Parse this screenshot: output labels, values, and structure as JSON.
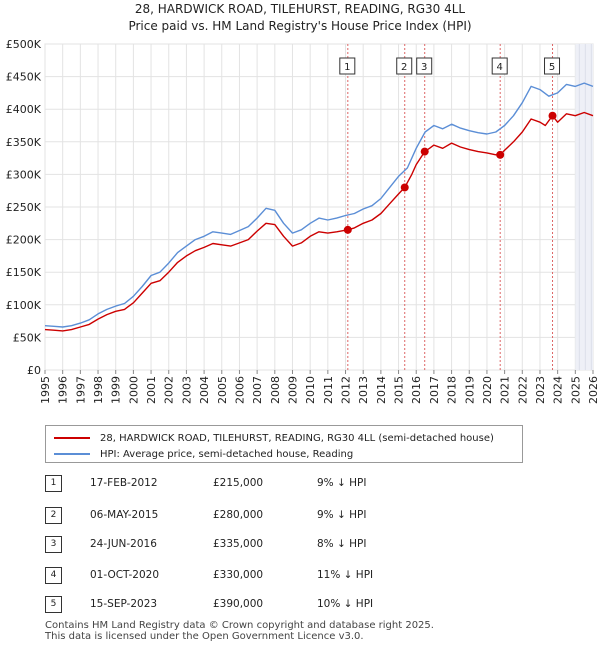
{
  "chart_data": {
    "type": "line",
    "title_line1": "28, HARDWICK ROAD, TILEHURST, READING, RG30 4LL",
    "title_line2": "Price paid vs. HM Land Registry's House Price Index (HPI)",
    "ylim": [
      0,
      500000
    ],
    "y_ticks": [
      {
        "value": 0,
        "label": "£0"
      },
      {
        "value": 50000,
        "label": "£50K"
      },
      {
        "value": 100000,
        "label": "£100K"
      },
      {
        "value": 150000,
        "label": "£150K"
      },
      {
        "value": 200000,
        "label": "£200K"
      },
      {
        "value": 250000,
        "label": "£250K"
      },
      {
        "value": 300000,
        "label": "£300K"
      },
      {
        "value": 350000,
        "label": "£350K"
      },
      {
        "value": 400000,
        "label": "£400K"
      },
      {
        "value": 450000,
        "label": "£450K"
      },
      {
        "value": 500000,
        "label": "£500K"
      }
    ],
    "xlim": [
      1995,
      2026
    ],
    "x_ticks": [
      "1995",
      "1996",
      "1997",
      "1998",
      "1999",
      "2000",
      "2001",
      "2002",
      "2003",
      "2004",
      "2005",
      "2006",
      "2007",
      "2008",
      "2009",
      "2010",
      "2011",
      "2012",
      "2013",
      "2014",
      "2015",
      "2016",
      "2017",
      "2018",
      "2019",
      "2020",
      "2021",
      "2022",
      "2023",
      "2024",
      "2025",
      "2026"
    ],
    "series": [
      {
        "name": "28, HARDWICK ROAD, TILEHURST, READING, RG30 4LL (semi-detached house)",
        "color": "#cc0000",
        "points": [
          [
            1995.0,
            62000
          ],
          [
            1995.5,
            61000
          ],
          [
            1996.0,
            60000
          ],
          [
            1996.5,
            62000
          ],
          [
            1997.0,
            66000
          ],
          [
            1997.5,
            70000
          ],
          [
            1998.0,
            78000
          ],
          [
            1998.5,
            85000
          ],
          [
            1999.0,
            90000
          ],
          [
            1999.5,
            93000
          ],
          [
            2000.0,
            103000
          ],
          [
            2000.5,
            118000
          ],
          [
            2001.0,
            133000
          ],
          [
            2001.5,
            137000
          ],
          [
            2002.0,
            150000
          ],
          [
            2002.5,
            165000
          ],
          [
            2003.0,
            175000
          ],
          [
            2003.5,
            183000
          ],
          [
            2004.0,
            188000
          ],
          [
            2004.5,
            194000
          ],
          [
            2005.0,
            192000
          ],
          [
            2005.5,
            190000
          ],
          [
            2006.0,
            195000
          ],
          [
            2006.5,
            200000
          ],
          [
            2007.0,
            213000
          ],
          [
            2007.5,
            225000
          ],
          [
            2008.0,
            223000
          ],
          [
            2008.5,
            205000
          ],
          [
            2009.0,
            190000
          ],
          [
            2009.5,
            195000
          ],
          [
            2010.0,
            205000
          ],
          [
            2010.5,
            212000
          ],
          [
            2011.0,
            210000
          ],
          [
            2011.5,
            212000
          ],
          [
            2012.13,
            215000
          ],
          [
            2012.5,
            218000
          ],
          [
            2013.0,
            225000
          ],
          [
            2013.5,
            230000
          ],
          [
            2014.0,
            240000
          ],
          [
            2014.5,
            255000
          ],
          [
            2015.0,
            270000
          ],
          [
            2015.35,
            280000
          ],
          [
            2015.75,
            300000
          ],
          [
            2016.0,
            315000
          ],
          [
            2016.48,
            335000
          ],
          [
            2016.75,
            340000
          ],
          [
            2017.0,
            345000
          ],
          [
            2017.5,
            340000
          ],
          [
            2018.0,
            348000
          ],
          [
            2018.5,
            342000
          ],
          [
            2019.0,
            338000
          ],
          [
            2019.5,
            335000
          ],
          [
            2020.0,
            333000
          ],
          [
            2020.5,
            330000
          ],
          [
            2020.75,
            330000
          ],
          [
            2021.0,
            337000
          ],
          [
            2021.5,
            350000
          ],
          [
            2022.0,
            365000
          ],
          [
            2022.5,
            385000
          ],
          [
            2023.0,
            380000
          ],
          [
            2023.3,
            375000
          ],
          [
            2023.71,
            390000
          ],
          [
            2024.0,
            380000
          ],
          [
            2024.5,
            393000
          ],
          [
            2025.0,
            390000
          ],
          [
            2025.5,
            395000
          ],
          [
            2026.0,
            390000
          ]
        ]
      },
      {
        "name": "HPI: Average price, semi-detached house, Reading",
        "color": "#5b8ed6",
        "points": [
          [
            1995.0,
            68000
          ],
          [
            1995.5,
            67000
          ],
          [
            1996.0,
            66000
          ],
          [
            1996.5,
            68000
          ],
          [
            1997.0,
            72000
          ],
          [
            1997.5,
            77000
          ],
          [
            1998.0,
            86000
          ],
          [
            1998.5,
            93000
          ],
          [
            1999.0,
            98000
          ],
          [
            1999.5,
            102000
          ],
          [
            2000.0,
            113000
          ],
          [
            2000.5,
            128000
          ],
          [
            2001.0,
            145000
          ],
          [
            2001.5,
            150000
          ],
          [
            2002.0,
            164000
          ],
          [
            2002.5,
            180000
          ],
          [
            2003.0,
            190000
          ],
          [
            2003.5,
            200000
          ],
          [
            2004.0,
            205000
          ],
          [
            2004.5,
            212000
          ],
          [
            2005.0,
            210000
          ],
          [
            2005.5,
            208000
          ],
          [
            2006.0,
            214000
          ],
          [
            2006.5,
            220000
          ],
          [
            2007.0,
            233000
          ],
          [
            2007.5,
            248000
          ],
          [
            2008.0,
            245000
          ],
          [
            2008.5,
            225000
          ],
          [
            2009.0,
            210000
          ],
          [
            2009.5,
            215000
          ],
          [
            2010.0,
            225000
          ],
          [
            2010.5,
            233000
          ],
          [
            2011.0,
            230000
          ],
          [
            2011.5,
            233000
          ],
          [
            2012.0,
            237000
          ],
          [
            2012.5,
            240000
          ],
          [
            2013.0,
            247000
          ],
          [
            2013.5,
            252000
          ],
          [
            2014.0,
            263000
          ],
          [
            2014.5,
            280000
          ],
          [
            2015.0,
            297000
          ],
          [
            2015.5,
            310000
          ],
          [
            2016.0,
            340000
          ],
          [
            2016.5,
            365000
          ],
          [
            2017.0,
            375000
          ],
          [
            2017.5,
            370000
          ],
          [
            2018.0,
            377000
          ],
          [
            2018.5,
            371000
          ],
          [
            2019.0,
            367000
          ],
          [
            2019.5,
            364000
          ],
          [
            2020.0,
            362000
          ],
          [
            2020.5,
            365000
          ],
          [
            2021.0,
            375000
          ],
          [
            2021.5,
            390000
          ],
          [
            2022.0,
            410000
          ],
          [
            2022.5,
            435000
          ],
          [
            2023.0,
            430000
          ],
          [
            2023.5,
            420000
          ],
          [
            2024.0,
            425000
          ],
          [
            2024.5,
            438000
          ],
          [
            2025.0,
            435000
          ],
          [
            2025.5,
            440000
          ],
          [
            2026.0,
            435000
          ]
        ]
      }
    ],
    "sales": [
      {
        "num": "1",
        "year": 2012.13,
        "price": 215000
      },
      {
        "num": "2",
        "year": 2015.35,
        "price": 280000
      },
      {
        "num": "3",
        "year": 2016.48,
        "price": 335000
      },
      {
        "num": "4",
        "year": 2020.75,
        "price": 330000
      },
      {
        "num": "5",
        "year": 2023.71,
        "price": 390000
      }
    ],
    "future_from": 2025.0
  },
  "legend": {
    "property_label": "28, HARDWICK ROAD, TILEHURST, READING, RG30 4LL (semi-detached house)",
    "hpi_label": "HPI: Average price, semi-detached house, Reading",
    "property_color": "#cc0000",
    "hpi_color": "#5b8ed6"
  },
  "sales_table": [
    {
      "num": "1",
      "date": "17-FEB-2012",
      "price": "£215,000",
      "hpi": "9% ↓ HPI"
    },
    {
      "num": "2",
      "date": "06-MAY-2015",
      "price": "£280,000",
      "hpi": "9% ↓ HPI"
    },
    {
      "num": "3",
      "date": "24-JUN-2016",
      "price": "£335,000",
      "hpi": "8% ↓ HPI"
    },
    {
      "num": "4",
      "date": "01-OCT-2020",
      "price": "£330,000",
      "hpi": "11% ↓ HPI"
    },
    {
      "num": "5",
      "date": "15-SEP-2023",
      "price": "£390,000",
      "hpi": "10% ↓ HPI"
    }
  ],
  "footer": {
    "line1": "Contains HM Land Registry data © Crown copyright and database right 2025.",
    "line2": "This data is licensed under the Open Government Licence v3.0."
  }
}
